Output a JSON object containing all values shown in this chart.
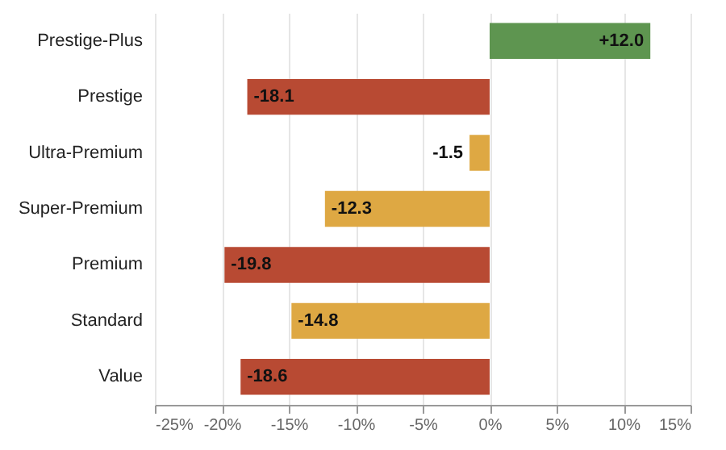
{
  "chart_data": {
    "type": "bar",
    "orientation": "horizontal",
    "categories": [
      "Prestige-Plus",
      "Prestige",
      "Ultra-Premium",
      "Super-Premium",
      "Premium",
      "Standard",
      "Value"
    ],
    "values": [
      12.0,
      -18.1,
      -1.5,
      -12.3,
      -19.8,
      -14.8,
      -18.6
    ],
    "colors": [
      "#5e9550",
      "#b84a33",
      "#dea843",
      "#dea843",
      "#b84a33",
      "#dea843",
      "#b84a33"
    ],
    "value_labels": [
      "+12.0",
      "-18.1",
      "-1.5",
      "-12.3",
      "-19.8",
      "-14.8",
      "-18.6"
    ],
    "xlim": [
      -25,
      15
    ],
    "xticks": [
      {
        "value": -25,
        "label": "-25%"
      },
      {
        "value": -20,
        "label": "-20%"
      },
      {
        "value": -15,
        "label": "-15%"
      },
      {
        "value": -10,
        "label": "-10%"
      },
      {
        "value": -5,
        "label": "-5%"
      },
      {
        "value": 0,
        "label": "0%"
      },
      {
        "value": 5,
        "label": "5%"
      },
      {
        "value": 10,
        "label": "10%"
      },
      {
        "value": 15,
        "label": "15%"
      }
    ],
    "grid": "x"
  }
}
